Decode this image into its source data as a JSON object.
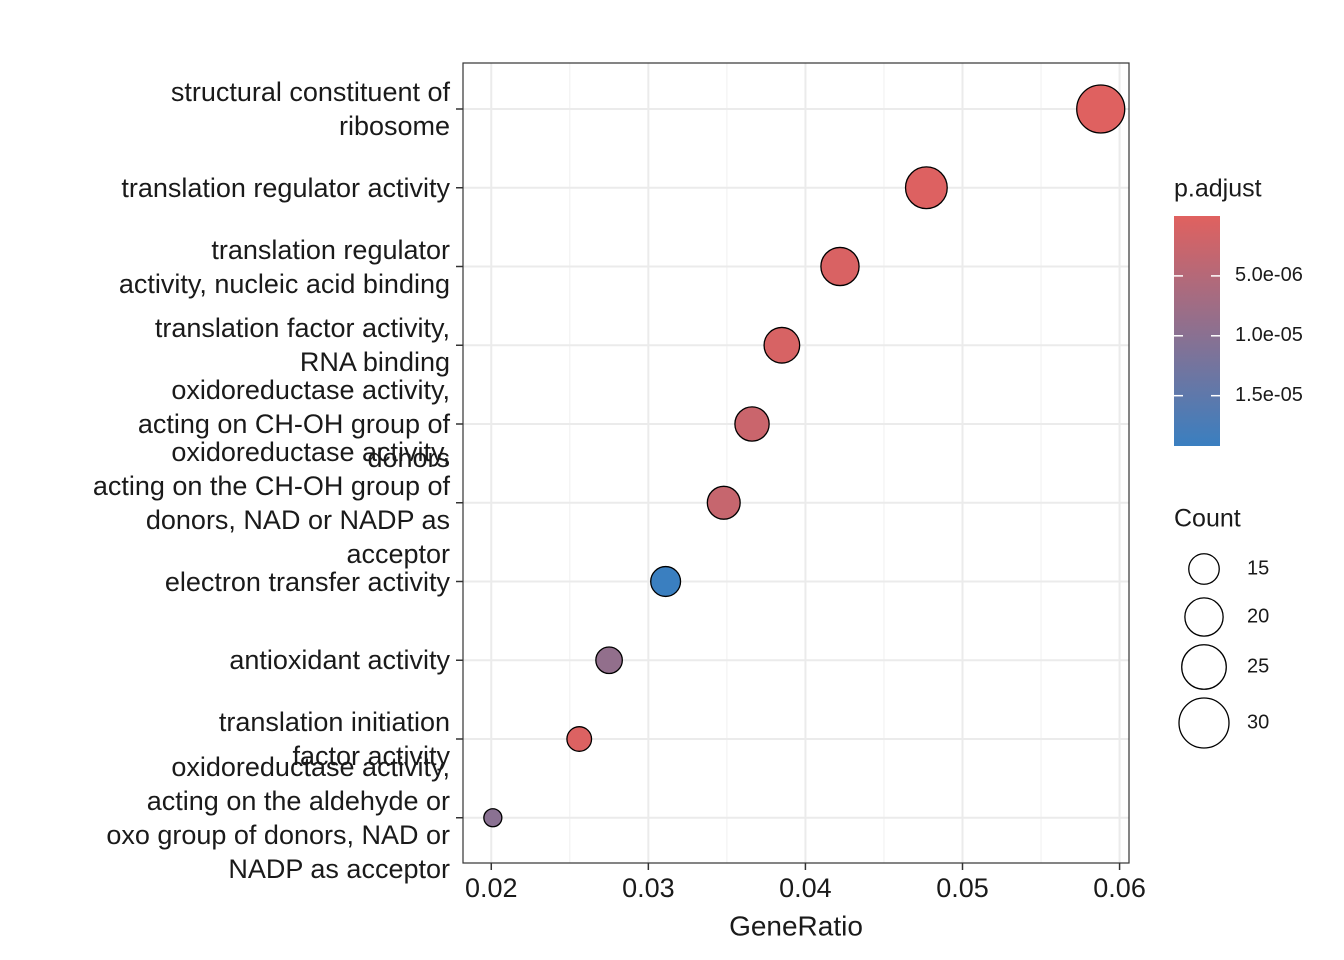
{
  "chart_data": {
    "type": "dot",
    "x_label": "GeneRatio",
    "categories": [
      "structural constituent of\nribosome",
      "translation regulator activity",
      "translation regulator\nactivity, nucleic acid binding",
      "translation factor activity,\nRNA binding",
      "oxidoreductase activity,\nacting on CH-OH group of\ndonors",
      "oxidoreductase activity,\nacting on the CH-OH group of\ndonors, NAD or NADP as\nacceptor",
      "electron transfer activity",
      "antioxidant activity",
      "translation initiation\nfactor activity",
      "oxidoreductase activity,\nacting on the aldehyde or\noxo group of donors, NAD or\nNADP as acceptor"
    ],
    "values": [
      0.0588,
      0.0477,
      0.0422,
      0.0385,
      0.0366,
      0.0348,
      0.0311,
      0.0275,
      0.0256,
      0.0201
    ],
    "count": [
      32,
      26,
      23,
      21,
      20,
      19,
      17,
      15,
      14,
      11
    ],
    "p_adjust": [
      1e-07,
      3e-07,
      8e-07,
      1e-06,
      2.5e-06,
      3e-06,
      1.92e-05,
      9e-06,
      5e-07,
      1e-05
    ],
    "xlim": [
      0.0182,
      0.0606
    ],
    "xticks": [
      0.02,
      0.03,
      0.04,
      0.05,
      0.06
    ],
    "x_minor_grid": [
      0.025,
      0.035,
      0.045,
      0.055
    ],
    "grid": true,
    "color_title": "p.adjust",
    "color_low": "#e0615f",
    "color_high": "#3a7fc0",
    "colorlim": [
      0,
      1.92e-05
    ],
    "colorticks": [
      {
        "value": 5e-06,
        "label": "5.0e-06"
      },
      {
        "value": 1e-05,
        "label": "1.0e-05"
      },
      {
        "value": 1.5e-05,
        "label": "1.5e-05"
      }
    ],
    "size_title": "Count",
    "size_legend": [
      15,
      20,
      25,
      30
    ],
    "size_lim": [
      11,
      32
    ]
  }
}
